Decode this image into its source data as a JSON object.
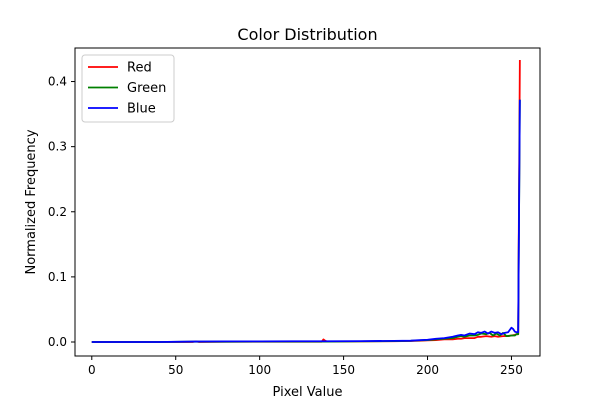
{
  "chart_data": {
    "type": "line",
    "title": "Color Distribution",
    "xlabel": "Pixel Value",
    "ylabel": "Normalized Frequency",
    "xlim": [
      -10,
      267
    ],
    "ylim": [
      -0.0215,
      0.4515
    ],
    "xticks": [
      0,
      50,
      100,
      150,
      200,
      250
    ],
    "yticks": [
      0.0,
      0.1,
      0.2,
      0.3,
      0.4
    ],
    "xtick_labels": [
      "0",
      "50",
      "100",
      "150",
      "200",
      "250"
    ],
    "ytick_labels": [
      "0.0",
      "0.1",
      "0.2",
      "0.3",
      "0.4"
    ],
    "grid": false,
    "legend": "top-left",
    "series": [
      {
        "name": "Red",
        "color": "#ff0000",
        "x": [
          0,
          20,
          40,
          60,
          62,
          64,
          80,
          100,
          120,
          137,
          138,
          139,
          140,
          141,
          160,
          180,
          190,
          195,
          200,
          205,
          210,
          215,
          218,
          220,
          222,
          225,
          228,
          230,
          232,
          235,
          238,
          240,
          242,
          245,
          248,
          250,
          252,
          253,
          254,
          255
        ],
        "y": [
          0.0,
          0.0,
          0.0,
          0.0,
          0.001,
          0.0,
          0.0005,
          0.0005,
          0.0005,
          0.0005,
          0.004,
          0.002,
          0.0008,
          0.0008,
          0.001,
          0.0012,
          0.0015,
          0.002,
          0.0025,
          0.003,
          0.004,
          0.004,
          0.005,
          0.005,
          0.006,
          0.006,
          0.006,
          0.008,
          0.008,
          0.009,
          0.008,
          0.009,
          0.008,
          0.009,
          0.009,
          0.01,
          0.011,
          0.012,
          0.012,
          0.433
        ]
      },
      {
        "name": "Green",
        "color": "#008000",
        "x": [
          0,
          20,
          40,
          60,
          80,
          100,
          120,
          140,
          160,
          180,
          190,
          195,
          200,
          205,
          210,
          215,
          218,
          220,
          222,
          225,
          228,
          230,
          232,
          235,
          237,
          239,
          241,
          243,
          245,
          247,
          250,
          252,
          253,
          254,
          255
        ],
        "y": [
          0.0,
          0.0,
          0.0,
          0.0005,
          0.0005,
          0.0006,
          0.0006,
          0.0007,
          0.001,
          0.0013,
          0.0018,
          0.0025,
          0.003,
          0.004,
          0.005,
          0.006,
          0.008,
          0.009,
          0.008,
          0.01,
          0.01,
          0.011,
          0.013,
          0.012,
          0.014,
          0.01,
          0.013,
          0.01,
          0.014,
          0.009,
          0.01,
          0.01,
          0.012,
          0.012,
          0.372
        ]
      },
      {
        "name": "Blue",
        "color": "#0000ff",
        "x": [
          0,
          20,
          40,
          60,
          80,
          100,
          120,
          140,
          160,
          180,
          190,
          195,
          200,
          205,
          210,
          215,
          218,
          220,
          222,
          225,
          228,
          230,
          232,
          234,
          236,
          238,
          240,
          242,
          244,
          246,
          248,
          250,
          251,
          252,
          253,
          254,
          255
        ],
        "y": [
          0.0,
          0.0,
          0.0,
          0.0007,
          0.0009,
          0.001,
          0.0011,
          0.0012,
          0.0014,
          0.0017,
          0.002,
          0.0028,
          0.0035,
          0.005,
          0.006,
          0.008,
          0.01,
          0.011,
          0.01,
          0.013,
          0.012,
          0.015,
          0.014,
          0.016,
          0.013,
          0.016,
          0.014,
          0.015,
          0.012,
          0.014,
          0.015,
          0.022,
          0.02,
          0.016,
          0.015,
          0.015,
          0.372
        ]
      }
    ]
  }
}
